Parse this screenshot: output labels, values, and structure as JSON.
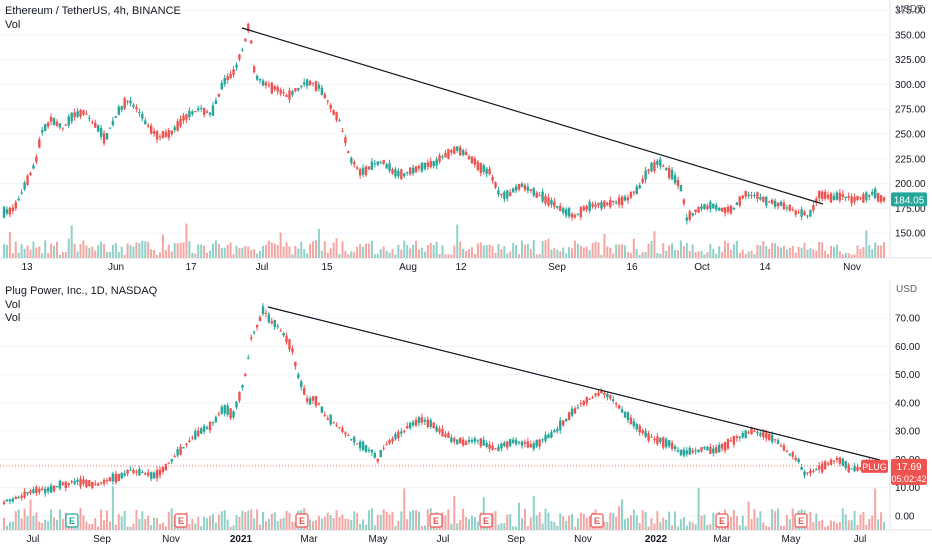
{
  "chart_data": [
    {
      "type": "candlestick",
      "title": "Ethereum / TetherUS, 4h, BINANCE",
      "indicators": [
        "Vol"
      ],
      "y_unit": "USDT",
      "ylim": [
        125,
        375
      ],
      "yticks": [
        "150.00",
        "175.00",
        "200.00",
        "225.00",
        "250.00",
        "275.00",
        "300.00",
        "325.00",
        "350.00",
        "375.00"
      ],
      "xticks": [
        "13",
        "Jun",
        "17",
        "Jul",
        "15",
        "Aug",
        "12",
        "Sep",
        "16",
        "Oct",
        "14",
        "Nov"
      ],
      "last_price": "184.05",
      "trendline": {
        "from": {
          "date": "Jun 24",
          "price": 365
        },
        "to": {
          "date": "Oct 29",
          "price": 172
        }
      },
      "price_path": [
        {
          "t": 0,
          "p": 170
        },
        {
          "t": 2,
          "p": 175
        },
        {
          "t": 4,
          "p": 200
        },
        {
          "t": 6,
          "p": 222
        },
        {
          "t": 7,
          "p": 252
        },
        {
          "t": 9,
          "p": 265
        },
        {
          "t": 11,
          "p": 255
        },
        {
          "t": 13,
          "p": 268
        },
        {
          "t": 15,
          "p": 272
        },
        {
          "t": 17,
          "p": 260
        },
        {
          "t": 19,
          "p": 245
        },
        {
          "t": 21,
          "p": 268
        },
        {
          "t": 23,
          "p": 285
        },
        {
          "t": 25,
          "p": 275
        },
        {
          "t": 27,
          "p": 258
        },
        {
          "t": 29,
          "p": 248
        },
        {
          "t": 31,
          "p": 250
        },
        {
          "t": 33,
          "p": 262
        },
        {
          "t": 35,
          "p": 272
        },
        {
          "t": 37,
          "p": 275
        },
        {
          "t": 39,
          "p": 270
        },
        {
          "t": 41,
          "p": 300
        },
        {
          "t": 43,
          "p": 312
        },
        {
          "t": 45,
          "p": 338
        },
        {
          "t": 46,
          "p": 362
        },
        {
          "t": 47,
          "p": 310
        },
        {
          "t": 49,
          "p": 300
        },
        {
          "t": 51,
          "p": 296
        },
        {
          "t": 53,
          "p": 288
        },
        {
          "t": 55,
          "p": 295
        },
        {
          "t": 57,
          "p": 303
        },
        {
          "t": 59,
          "p": 298
        },
        {
          "t": 61,
          "p": 280
        },
        {
          "t": 63,
          "p": 262
        },
        {
          "t": 65,
          "p": 225
        },
        {
          "t": 67,
          "p": 210
        },
        {
          "t": 69,
          "p": 218
        },
        {
          "t": 71,
          "p": 222
        },
        {
          "t": 73,
          "p": 212
        },
        {
          "t": 75,
          "p": 210
        },
        {
          "t": 77,
          "p": 214
        },
        {
          "t": 79,
          "p": 218
        },
        {
          "t": 81,
          "p": 222
        },
        {
          "t": 83,
          "p": 230
        },
        {
          "t": 85,
          "p": 235
        },
        {
          "t": 87,
          "p": 228
        },
        {
          "t": 89,
          "p": 218
        },
        {
          "t": 91,
          "p": 212
        },
        {
          "t": 93,
          "p": 188
        },
        {
          "t": 95,
          "p": 190
        },
        {
          "t": 97,
          "p": 198
        },
        {
          "t": 99,
          "p": 192
        },
        {
          "t": 101,
          "p": 186
        },
        {
          "t": 103,
          "p": 180
        },
        {
          "t": 105,
          "p": 172
        },
        {
          "t": 107,
          "p": 168
        },
        {
          "t": 109,
          "p": 175
        },
        {
          "t": 111,
          "p": 178
        },
        {
          "t": 113,
          "p": 180
        },
        {
          "t": 115,
          "p": 182
        },
        {
          "t": 117,
          "p": 185
        },
        {
          "t": 119,
          "p": 195
        },
        {
          "t": 121,
          "p": 215
        },
        {
          "t": 123,
          "p": 222
        },
        {
          "t": 125,
          "p": 210
        },
        {
          "t": 127,
          "p": 195
        },
        {
          "t": 128,
          "p": 165
        },
        {
          "t": 129,
          "p": 170
        },
        {
          "t": 131,
          "p": 176
        },
        {
          "t": 133,
          "p": 178
        },
        {
          "t": 135,
          "p": 172
        },
        {
          "t": 137,
          "p": 176
        },
        {
          "t": 139,
          "p": 190
        },
        {
          "t": 141,
          "p": 188
        },
        {
          "t": 143,
          "p": 182
        },
        {
          "t": 145,
          "p": 180
        },
        {
          "t": 147,
          "p": 176
        },
        {
          "t": 149,
          "p": 170
        },
        {
          "t": 151,
          "p": 168
        },
        {
          "t": 152,
          "p": 178
        },
        {
          "t": 153,
          "p": 190
        },
        {
          "t": 155,
          "p": 186
        },
        {
          "t": 157,
          "p": 188
        },
        {
          "t": 159,
          "p": 184
        },
        {
          "t": 161,
          "p": 185
        },
        {
          "t": 163,
          "p": 190
        },
        {
          "t": 165,
          "p": 184
        }
      ],
      "x_span": 165
    },
    {
      "type": "candlestick",
      "title": "Plug Power, Inc., 1D, NASDAQ",
      "indicators": [
        "Vol",
        "Vol"
      ],
      "y_unit": "USD",
      "ylim": [
        -5,
        80
      ],
      "yticks": [
        "0.00",
        "10.00",
        "20.00",
        "30.00",
        "40.00",
        "50.00",
        "60.00",
        "70.00"
      ],
      "xticks": [
        "Jul",
        "Sep",
        "Nov",
        "2021",
        "Mar",
        "May",
        "Jul",
        "Sep",
        "Nov",
        "2022",
        "Mar",
        "May",
        "Jul"
      ],
      "last_price": "17.69",
      "ticker": "PLUG",
      "countdown": "05:02:42",
      "earnings_marker": "E",
      "trendline": {
        "from": {
          "date": "Feb 2021",
          "price": 75
        },
        "to": {
          "date": "Jul 2022",
          "price": 21
        }
      },
      "price_path": [
        {
          "t": 0,
          "p": 5
        },
        {
          "t": 2,
          "p": 6
        },
        {
          "t": 4,
          "p": 8
        },
        {
          "t": 6,
          "p": 9
        },
        {
          "t": 8,
          "p": 9
        },
        {
          "t": 10,
          "p": 11
        },
        {
          "t": 12,
          "p": 12
        },
        {
          "t": 14,
          "p": 12
        },
        {
          "t": 16,
          "p": 11
        },
        {
          "t": 18,
          "p": 13
        },
        {
          "t": 20,
          "p": 14
        },
        {
          "t": 22,
          "p": 16
        },
        {
          "t": 24,
          "p": 15
        },
        {
          "t": 26,
          "p": 14
        },
        {
          "t": 28,
          "p": 17
        },
        {
          "t": 30,
          "p": 22
        },
        {
          "t": 32,
          "p": 26
        },
        {
          "t": 34,
          "p": 30
        },
        {
          "t": 36,
          "p": 32
        },
        {
          "t": 38,
          "p": 38
        },
        {
          "t": 40,
          "p": 36
        },
        {
          "t": 42,
          "p": 50
        },
        {
          "t": 43,
          "p": 63
        },
        {
          "t": 44,
          "p": 67
        },
        {
          "t": 45,
          "p": 73
        },
        {
          "t": 46,
          "p": 70
        },
        {
          "t": 48,
          "p": 66
        },
        {
          "t": 50,
          "p": 60
        },
        {
          "t": 51,
          "p": 50
        },
        {
          "t": 52,
          "p": 45
        },
        {
          "t": 53,
          "p": 40
        },
        {
          "t": 54,
          "p": 42
        },
        {
          "t": 56,
          "p": 35
        },
        {
          "t": 58,
          "p": 32
        },
        {
          "t": 60,
          "p": 28
        },
        {
          "t": 62,
          "p": 25
        },
        {
          "t": 64,
          "p": 23
        },
        {
          "t": 65,
          "p": 20
        },
        {
          "t": 66,
          "p": 24
        },
        {
          "t": 68,
          "p": 28
        },
        {
          "t": 70,
          "p": 31
        },
        {
          "t": 72,
          "p": 34
        },
        {
          "t": 74,
          "p": 33
        },
        {
          "t": 76,
          "p": 30
        },
        {
          "t": 78,
          "p": 27
        },
        {
          "t": 80,
          "p": 26
        },
        {
          "t": 82,
          "p": 27
        },
        {
          "t": 84,
          "p": 25
        },
        {
          "t": 86,
          "p": 24
        },
        {
          "t": 88,
          "p": 26
        },
        {
          "t": 90,
          "p": 26
        },
        {
          "t": 92,
          "p": 25
        },
        {
          "t": 94,
          "p": 27
        },
        {
          "t": 96,
          "p": 30
        },
        {
          "t": 98,
          "p": 35
        },
        {
          "t": 100,
          "p": 39
        },
        {
          "t": 102,
          "p": 42
        },
        {
          "t": 104,
          "p": 44
        },
        {
          "t": 106,
          "p": 41
        },
        {
          "t": 108,
          "p": 36
        },
        {
          "t": 110,
          "p": 32
        },
        {
          "t": 112,
          "p": 28
        },
        {
          "t": 114,
          "p": 27
        },
        {
          "t": 116,
          "p": 25
        },
        {
          "t": 118,
          "p": 22
        },
        {
          "t": 120,
          "p": 23
        },
        {
          "t": 122,
          "p": 24
        },
        {
          "t": 124,
          "p": 23
        },
        {
          "t": 126,
          "p": 26
        },
        {
          "t": 128,
          "p": 28
        },
        {
          "t": 130,
          "p": 30
        },
        {
          "t": 132,
          "p": 29
        },
        {
          "t": 134,
          "p": 27
        },
        {
          "t": 136,
          "p": 23
        },
        {
          "t": 138,
          "p": 20
        },
        {
          "t": 139,
          "p": 15
        },
        {
          "t": 141,
          "p": 16
        },
        {
          "t": 143,
          "p": 18
        },
        {
          "t": 145,
          "p": 20
        },
        {
          "t": 147,
          "p": 17
        },
        {
          "t": 149,
          "p": 17
        },
        {
          "t": 151,
          "p": 19
        },
        {
          "t": 153,
          "p": 18
        }
      ],
      "x_span": 153
    }
  ],
  "colors": {
    "up": "#26a69a",
    "down": "#ef5350",
    "vol_up": "#8fd0c8",
    "vol_down": "#f4a6a3",
    "price_tag_eth": "#26a69a",
    "price_tag_plug": "#ef5350",
    "trendline": "#131722",
    "grid": "#f0f3fa",
    "axis_text": "#131722"
  }
}
